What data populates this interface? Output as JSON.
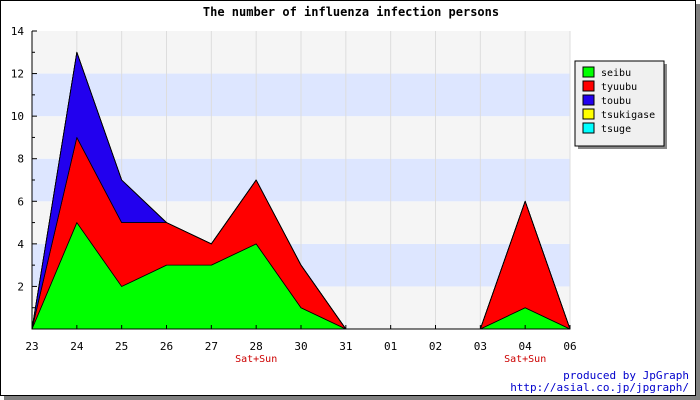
{
  "chart_data": {
    "type": "area",
    "stacked": true,
    "title": "The number of influenza infection persons",
    "xlabel": "",
    "ylabel": "",
    "ylim": [
      0,
      14
    ],
    "yticks": [
      2,
      4,
      6,
      8,
      10,
      12,
      14
    ],
    "categories": [
      "23",
      "24",
      "25",
      "26",
      "27",
      "28",
      "30",
      "31",
      "01",
      "02",
      "03",
      "04",
      "06"
    ],
    "sublabels": [
      "",
      "",
      "",
      "",
      "",
      "Sat+Sun",
      "",
      "",
      "",
      "",
      "",
      "Sat+Sun",
      ""
    ],
    "series": [
      {
        "name": "seibu",
        "color": "#00ff00",
        "values": [
          0,
          5,
          2,
          3,
          3,
          4,
          1,
          0,
          0,
          0,
          0,
          1,
          0
        ]
      },
      {
        "name": "tyuubu",
        "color": "#ff0000",
        "values": [
          0,
          4,
          3,
          2,
          1,
          3,
          2,
          0,
          0,
          0,
          0,
          5,
          0
        ]
      },
      {
        "name": "toubu",
        "color": "#2200ee",
        "values": [
          0,
          4,
          2,
          0,
          0,
          0,
          0,
          0,
          0,
          0,
          0,
          0,
          0
        ]
      },
      {
        "name": "tsukigase",
        "color": "#ffff00",
        "values": [
          0,
          0,
          0,
          0,
          0,
          0,
          0,
          0,
          0,
          0,
          0,
          0,
          0
        ]
      },
      {
        "name": "tsuge",
        "color": "#00ffff",
        "values": [
          0,
          0,
          0,
          0,
          0,
          0,
          0,
          0,
          0,
          0,
          0,
          0,
          0
        ]
      }
    ],
    "grid": true,
    "legend_position": "top-right",
    "band_colors": [
      "#f5f5f5",
      "#dde6ff"
    ]
  },
  "credit": {
    "line1": "produced by JpGraph",
    "line2": "http://asial.co.jp/jpgraph/"
  }
}
